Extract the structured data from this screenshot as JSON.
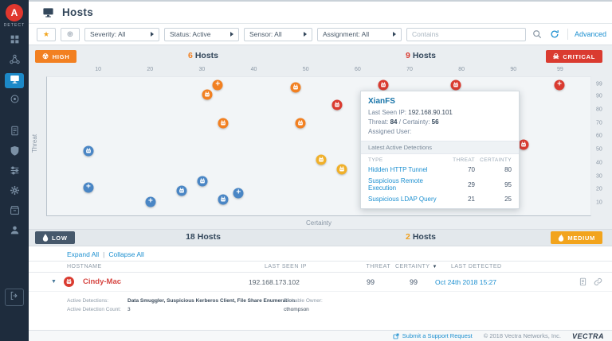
{
  "app": {
    "brand": "DETECT"
  },
  "header": {
    "title": "Hosts"
  },
  "sidebar": {
    "logo_letter": "A",
    "items": [
      "dashboard",
      "network",
      "hosts",
      "detections",
      "reports",
      "security",
      "filters",
      "settings",
      "system",
      "users",
      "sign-out"
    ]
  },
  "filters": {
    "severity": "Severity: All",
    "status": "Status: Active",
    "sensor": "Sensor: All",
    "assignment": "Assignment: All",
    "contains_placeholder": "Contains",
    "advanced": "Advanced"
  },
  "quadrants": {
    "hosts_word": "Hosts",
    "high": {
      "label": "HIGH",
      "count": "6",
      "color": "#f28021"
    },
    "critical": {
      "label": "CRITICAL",
      "count": "9",
      "color": "#da3b30"
    },
    "low": {
      "label": "LOW",
      "count": "18",
      "color": "#46586b"
    },
    "medium": {
      "label": "MEDIUM",
      "count": "2",
      "color": "#f2a41d"
    },
    "count_colors": {
      "high": "#f28021",
      "critical": "#da3b30",
      "low": "#33475b",
      "medium": "#f0a01e"
    }
  },
  "chart_data": {
    "type": "scatter",
    "xlabel": "Certainty",
    "ylabel": "Threat",
    "axis_max": 105,
    "xlim": [
      0,
      99
    ],
    "ylim": [
      0,
      99
    ],
    "x_ticks": [
      10,
      20,
      30,
      40,
      50,
      60,
      70,
      80,
      90,
      99
    ],
    "y_ticks": [
      99,
      90,
      80,
      70,
      60,
      50,
      40,
      30,
      20,
      10
    ],
    "series": [
      {
        "name": "critical",
        "color": "#da3b30",
        "points": [
          {
            "x": 65,
            "y": 99,
            "icon": "host"
          },
          {
            "x": 79,
            "y": 99,
            "icon": "host"
          },
          {
            "x": 56,
            "y": 84,
            "icon": "host",
            "label": "XianFS"
          },
          {
            "x": 99,
            "y": 99,
            "icon": "plus"
          },
          {
            "x": 92,
            "y": 54,
            "icon": "host"
          }
        ]
      },
      {
        "name": "high",
        "color": "#f28021",
        "points": [
          {
            "x": 33,
            "y": 99,
            "icon": "plus"
          },
          {
            "x": 31,
            "y": 92,
            "icon": "host"
          },
          {
            "x": 48,
            "y": 97,
            "icon": "host"
          },
          {
            "x": 34,
            "y": 70,
            "icon": "host"
          },
          {
            "x": 49,
            "y": 70,
            "icon": "host"
          }
        ]
      },
      {
        "name": "medium",
        "color": "#f0b02a",
        "points": [
          {
            "x": 53,
            "y": 42,
            "icon": "host"
          },
          {
            "x": 57,
            "y": 35,
            "icon": "host"
          }
        ]
      },
      {
        "name": "low",
        "color": "#4a86c5",
        "points": [
          {
            "x": 8,
            "y": 49,
            "icon": "host"
          },
          {
            "x": 8,
            "y": 21,
            "icon": "plus"
          },
          {
            "x": 20,
            "y": 10,
            "icon": "plus"
          },
          {
            "x": 26,
            "y": 19,
            "icon": "host"
          },
          {
            "x": 30,
            "y": 26,
            "icon": "host"
          },
          {
            "x": 34,
            "y": 12,
            "icon": "host"
          },
          {
            "x": 37,
            "y": 17,
            "icon": "plus"
          }
        ]
      }
    ]
  },
  "tooltip": {
    "title": "XianFS",
    "last_seen_ip_label": "Last Seen IP:",
    "last_seen_ip": "192.168.90.101",
    "threat_label": "Threat:",
    "threat": "84",
    "sep": "/",
    "certainty_label": "Certainty:",
    "certainty": "56",
    "assigned_user_label": "Assigned User:",
    "assigned_user": "",
    "detections_header": "Latest Active Detections",
    "columns": {
      "type": "TYPE",
      "threat": "THREAT",
      "certainty": "CERTAINTY"
    },
    "detections": [
      {
        "type": "Hidden HTTP Tunnel",
        "threat": "70",
        "certainty": "80"
      },
      {
        "type": "Suspicious Remote Execution",
        "threat": "29",
        "certainty": "95"
      },
      {
        "type": "Suspicious LDAP Query",
        "threat": "21",
        "certainty": "25"
      }
    ]
  },
  "table": {
    "expand_all": "Expand All",
    "links_sep": "|",
    "collapse_all": "Collapse All",
    "headers": {
      "hostname": "HOSTNAME",
      "last_seen_ip": "LAST SEEN IP",
      "threat": "THREAT",
      "certainty": "CERTAINTY",
      "last_detected": "LAST DETECTED"
    },
    "row": {
      "hostname": "Cindy-Mac",
      "last_seen_ip": "192.168.173.102",
      "threat": "99",
      "certainty": "99",
      "last_detected": "Oct 24th 2018 15:27",
      "active_detections_label": "Active Detections:",
      "active_detections": "Data Smuggler, Suspicious Kerberos Client, File Share Enumeration",
      "active_detection_count_label": "Active Detection Count:",
      "active_detection_count": "3",
      "probable_owner_label": "Probable Owner:",
      "probable_owner": "cthompson"
    }
  },
  "footer": {
    "support": "Submit a Support Request",
    "copyright": "© 2018 Vectra Networks, Inc.",
    "brand": "VECTRA"
  },
  "icons": {
    "star": "★",
    "crosshair": "⊕",
    "radiation": "☢",
    "skull": "☠",
    "sort_desc": "▼",
    "expander": "▼"
  }
}
